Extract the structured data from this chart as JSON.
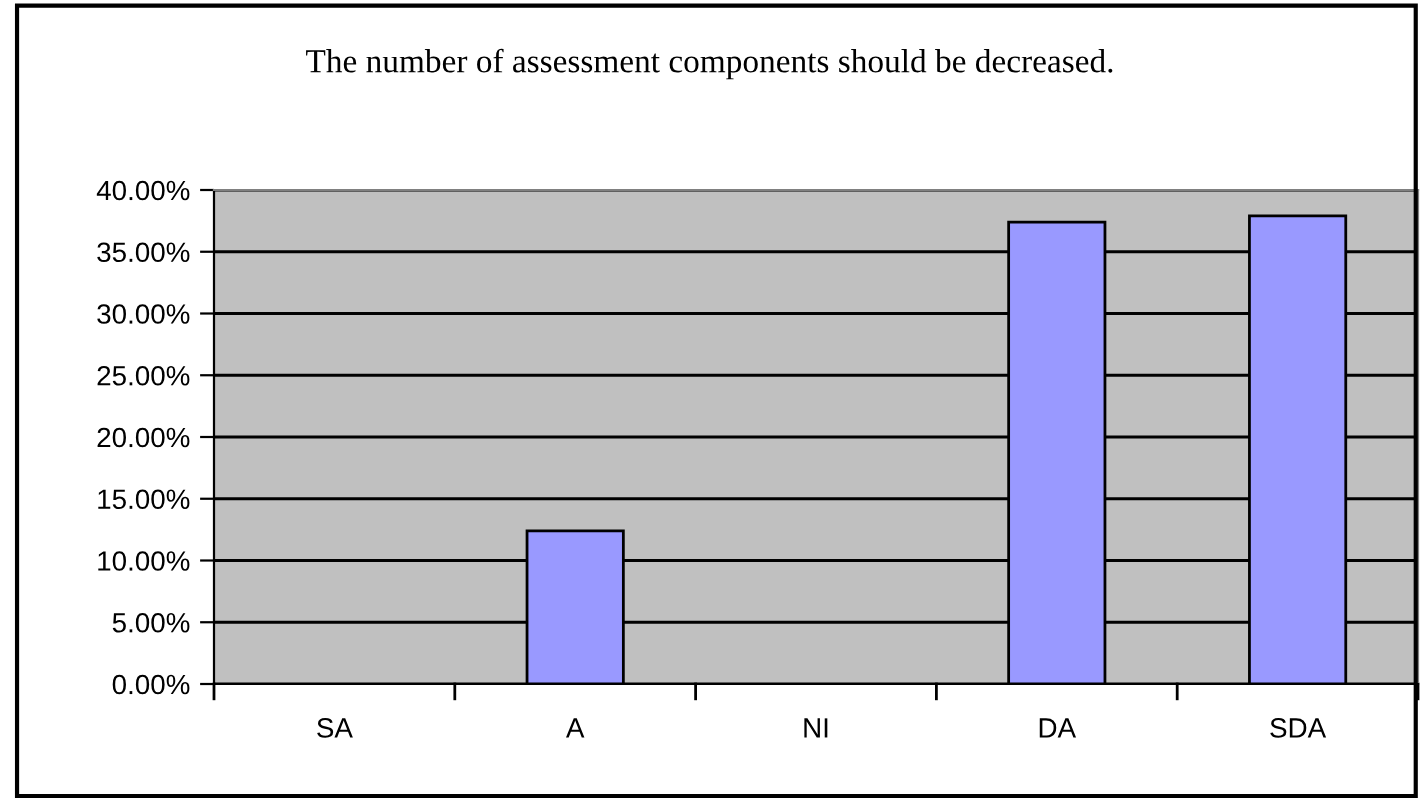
{
  "chart_data": {
    "type": "bar",
    "title": "The number of assessment components should be decreased.",
    "categories": [
      "SA",
      "A",
      "NI",
      "DA",
      "SDA"
    ],
    "values": [
      0,
      12.4,
      0,
      37.4,
      37.9
    ],
    "color": "#9999ff",
    "ylim": [
      0,
      40
    ],
    "yticks": [
      {
        "value": 0,
        "label": "0.00%"
      },
      {
        "value": 5,
        "label": "5.00%"
      },
      {
        "value": 10,
        "label": "10.00%"
      },
      {
        "value": 15,
        "label": "15.00%"
      },
      {
        "value": 20,
        "label": "20.00%"
      },
      {
        "value": 25,
        "label": "25.00%"
      },
      {
        "value": 30,
        "label": "30.00%"
      },
      {
        "value": 35,
        "label": "35.00%"
      },
      {
        "value": 40,
        "label": "40.00%"
      }
    ],
    "grid": "y",
    "legend": false
  }
}
